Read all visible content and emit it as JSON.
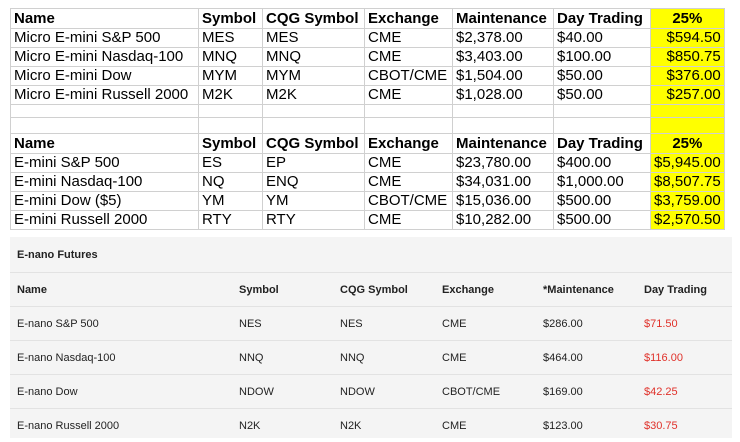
{
  "sheet_1": {
    "header": [
      "Name",
      "Symbol",
      "CQG Symbol",
      "Exchange",
      "Maintenance",
      "Day Trading",
      "25%"
    ],
    "rows": [
      [
        "Micro E-mini S&P 500",
        "MES",
        "MES",
        "CME",
        "$2,378.00",
        "$40.00",
        "$594.50"
      ],
      [
        "Micro E-mini Nasdaq-100",
        "MNQ",
        "MNQ",
        "CME",
        "$3,403.00",
        "$100.00",
        "$850.75"
      ],
      [
        "Micro E-mini Dow",
        "MYM",
        "MYM",
        "CBOT/CME",
        "$1,504.00",
        "$50.00",
        "$376.00"
      ],
      [
        "Micro E-mini Russell 2000",
        "M2K",
        "M2K",
        "CME",
        "$1,028.00",
        "$50.00",
        "$257.00"
      ]
    ]
  },
  "sheet_2": {
    "header": [
      "Name",
      "Symbol",
      "CQG Symbol",
      "Exchange",
      "Maintenance",
      "Day Trading",
      "25%"
    ],
    "rows": [
      [
        "E-mini S&P 500",
        "ES",
        "EP",
        "CME",
        "$23,780.00",
        "$400.00",
        "$5,945.00"
      ],
      [
        "E-mini Nasdaq-100",
        "NQ",
        "ENQ",
        "CME",
        "$34,031.00",
        "$1,000.00",
        "$8,507.75"
      ],
      [
        "E-mini Dow ($5)",
        "YM",
        "YM",
        "CBOT/CME",
        "$15,036.00",
        "$500.00",
        "$3,759.00"
      ],
      [
        "E-mini Russell 2000",
        "RTY",
        "RTY",
        "CME",
        "$10,282.00",
        "$500.00",
        "$2,570.50"
      ]
    ]
  },
  "enano": {
    "title": "E-nano Futures",
    "header": [
      "Name",
      "Symbol",
      "CQG Symbol",
      "Exchange",
      "*Maintenance",
      "Day Trading"
    ],
    "rows": [
      [
        "E-nano S&P 500",
        "NES",
        "NES",
        "CME",
        "$286.00",
        "$71.50"
      ],
      [
        "E-nano Nasdaq-100",
        "NNQ",
        "NNQ",
        "CME",
        "$464.00",
        "$116.00"
      ],
      [
        "E-nano Dow",
        "NDOW",
        "NDOW",
        "CBOT/CME",
        "$169.00",
        "$42.25"
      ],
      [
        "E-nano Russell 2000",
        "N2K",
        "N2K",
        "CME",
        "$123.00",
        "$30.75"
      ]
    ]
  }
}
